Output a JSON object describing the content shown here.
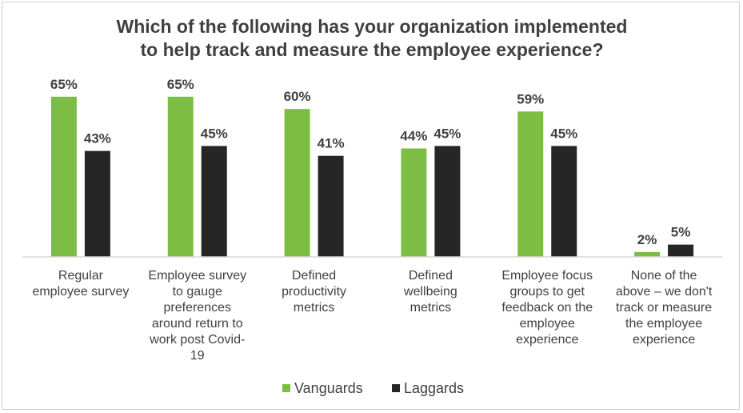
{
  "chart_data": {
    "type": "bar",
    "title_lines": [
      "Which of the following has your organization implemented",
      "to help track and measure the employee experience?"
    ],
    "categories": [
      [
        "Regular",
        "employee survey"
      ],
      [
        "Employee survey",
        "to gauge",
        "preferences",
        "around return to",
        "work post Covid-",
        "19"
      ],
      [
        "Defined",
        "productivity",
        "metrics"
      ],
      [
        "Defined",
        "wellbeing",
        "metrics"
      ],
      [
        "Employee focus",
        "groups to get",
        "feedback on the",
        "employee",
        "experience"
      ],
      [
        "None of the",
        "above – we don't",
        "track or measure",
        "the employee",
        "experience"
      ]
    ],
    "series": [
      {
        "name": "Vanguards",
        "color": "#7dbd43",
        "values": [
          65,
          65,
          60,
          44,
          59,
          2
        ],
        "labels": [
          "65%",
          "65%",
          "60%",
          "44%",
          "59%",
          "2%"
        ]
      },
      {
        "name": "Laggards",
        "color": "#262626",
        "values": [
          43,
          45,
          41,
          45,
          45,
          5
        ],
        "labels": [
          "43%",
          "45%",
          "41%",
          "45%",
          "45%",
          "5%"
        ]
      }
    ],
    "ylim": [
      0,
      100
    ],
    "y_unit": "%",
    "grid": false,
    "legend_position": "bottom"
  }
}
